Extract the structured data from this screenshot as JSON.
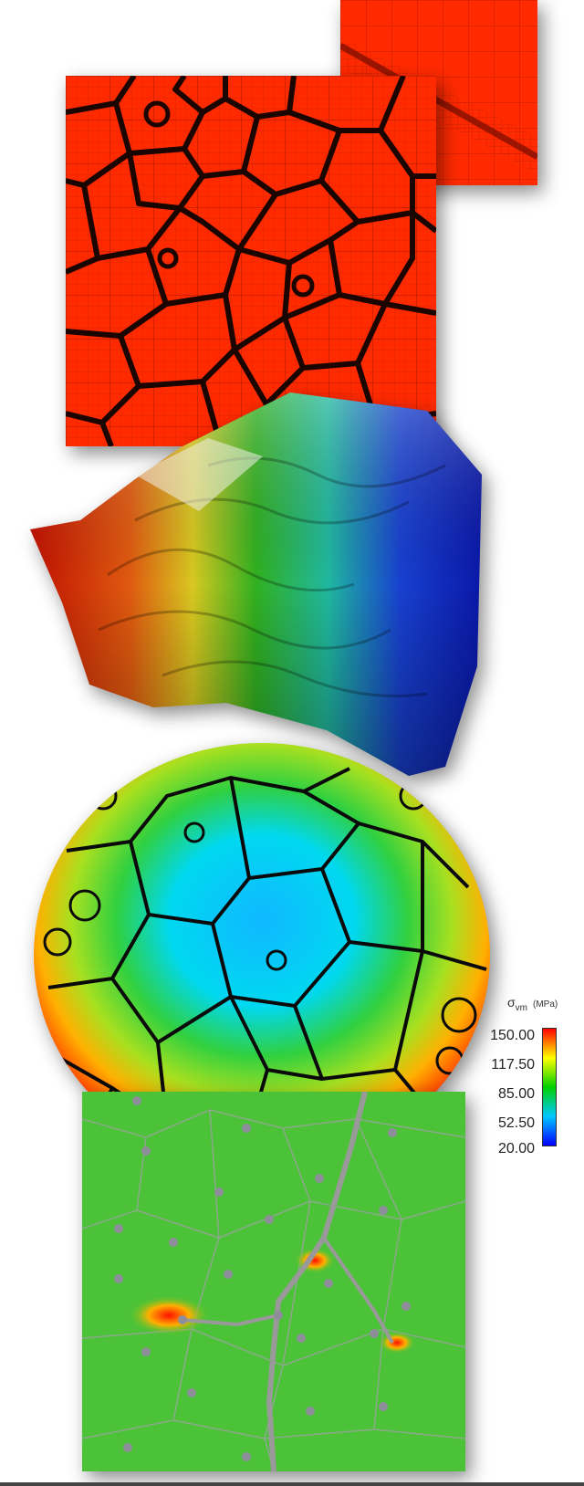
{
  "legend": {
    "symbol": "σ",
    "subscript": "vm",
    "unit": "(MPa)",
    "ticks": [
      "150.00",
      "117.50",
      "85.00",
      "52.50",
      "20.00"
    ],
    "colors": [
      "#ff0000",
      "#ffff00",
      "#00d000",
      "#00c8ff",
      "#0000ff"
    ]
  },
  "panels": [
    {
      "name": "polycrystal-adaptive-mesh",
      "color": "#ff2a00"
    },
    {
      "name": "grain-boundary-mesh-zoom",
      "color": "#ff2a00"
    },
    {
      "name": "deformed-3d-polycrystal-surface"
    },
    {
      "name": "von-mises-stress-disk"
    },
    {
      "name": "intergranular-crack-panel"
    }
  ]
}
